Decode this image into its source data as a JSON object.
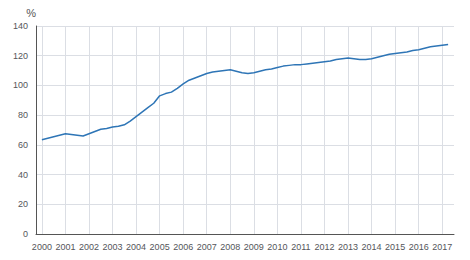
{
  "chart_data": {
    "type": "line",
    "ylabel": "%",
    "x": [
      2000.0,
      2000.25,
      2000.5,
      2000.75,
      2001.0,
      2001.25,
      2001.5,
      2001.75,
      2002.0,
      2002.25,
      2002.5,
      2002.75,
      2003.0,
      2003.25,
      2003.5,
      2003.75,
      2004.0,
      2004.25,
      2004.5,
      2004.75,
      2005.0,
      2005.25,
      2005.5,
      2005.75,
      2006.0,
      2006.25,
      2006.5,
      2006.75,
      2007.0,
      2007.25,
      2007.5,
      2007.75,
      2008.0,
      2008.25,
      2008.5,
      2008.75,
      2009.0,
      2009.25,
      2009.5,
      2009.75,
      2010.0,
      2010.25,
      2010.5,
      2010.75,
      2011.0,
      2011.25,
      2011.5,
      2011.75,
      2012.0,
      2012.25,
      2012.5,
      2012.75,
      2013.0,
      2013.25,
      2013.5,
      2013.75,
      2014.0,
      2014.25,
      2014.5,
      2014.75,
      2015.0,
      2015.25,
      2015.5,
      2015.75,
      2016.0,
      2016.25,
      2016.5,
      2016.75,
      2017.0,
      2017.25
    ],
    "values": [
      63.5,
      64.5,
      65.5,
      66.5,
      67.5,
      67.0,
      66.5,
      66.0,
      67.5,
      69.0,
      70.5,
      71.0,
      72.0,
      72.5,
      73.5,
      76.0,
      79.0,
      82.0,
      85.0,
      88.0,
      93.0,
      94.5,
      95.5,
      98.0,
      101.0,
      103.5,
      105.0,
      106.5,
      108.0,
      109.0,
      109.5,
      110.0,
      110.5,
      109.5,
      108.5,
      108.0,
      108.5,
      109.5,
      110.5,
      111.0,
      112.0,
      113.0,
      113.5,
      114.0,
      114.0,
      114.5,
      115.0,
      115.5,
      116.0,
      116.5,
      117.5,
      118.0,
      118.5,
      118.0,
      117.5,
      117.5,
      118.0,
      119.0,
      120.0,
      121.0,
      121.5,
      122.0,
      122.5,
      123.5,
      124.0,
      125.0,
      126.0,
      126.5,
      127.0,
      127.5
    ],
    "color": "#2e75b6",
    "xlim": [
      1999.75,
      2017.5
    ],
    "xticks": [
      2000,
      2001,
      2002,
      2003,
      2004,
      2005,
      2006,
      2007,
      2008,
      2009,
      2010,
      2011,
      2012,
      2013,
      2014,
      2015,
      2016,
      2017
    ],
    "ylim": [
      0,
      140
    ],
    "yticks": [
      0,
      20,
      40,
      60,
      80,
      100,
      120,
      140
    ],
    "grid": true
  }
}
